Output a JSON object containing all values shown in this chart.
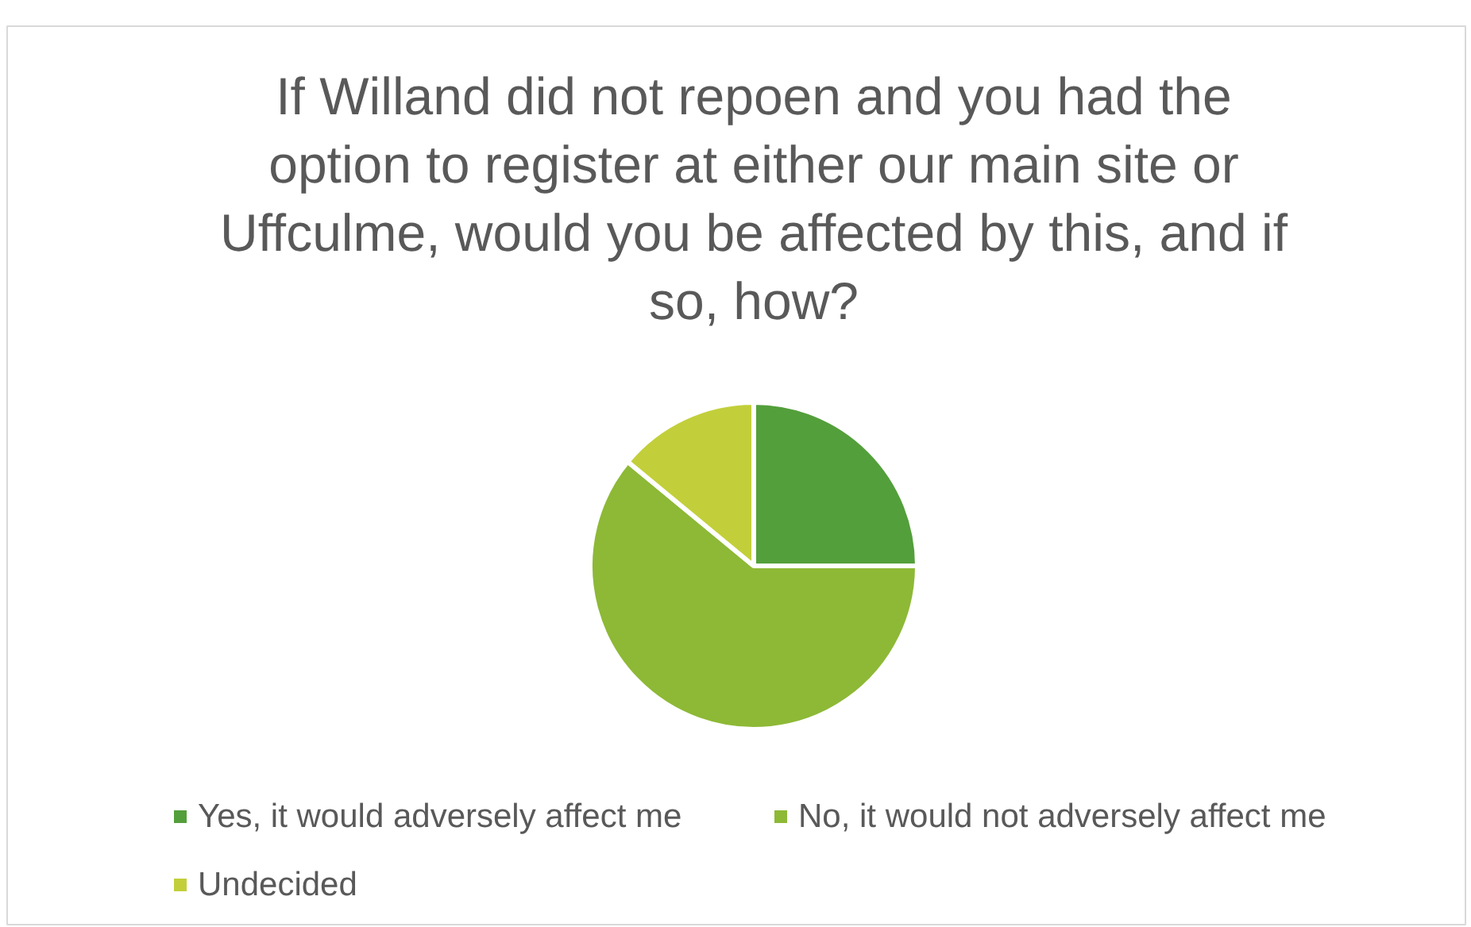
{
  "chart_data": {
    "type": "pie",
    "title": "If Willand did not repoen and you had the option to register at either our main site or Uffculme, would you be affected by this, and if so, how?",
    "categories": [
      "Yes, it would adversely affect me",
      "No, it would not adversely affect me",
      "Undecided"
    ],
    "values": [
      25,
      61,
      14
    ],
    "colors": [
      "#539f3b",
      "#8db936",
      "#c2cf3a"
    ],
    "legend": "bottom"
  }
}
